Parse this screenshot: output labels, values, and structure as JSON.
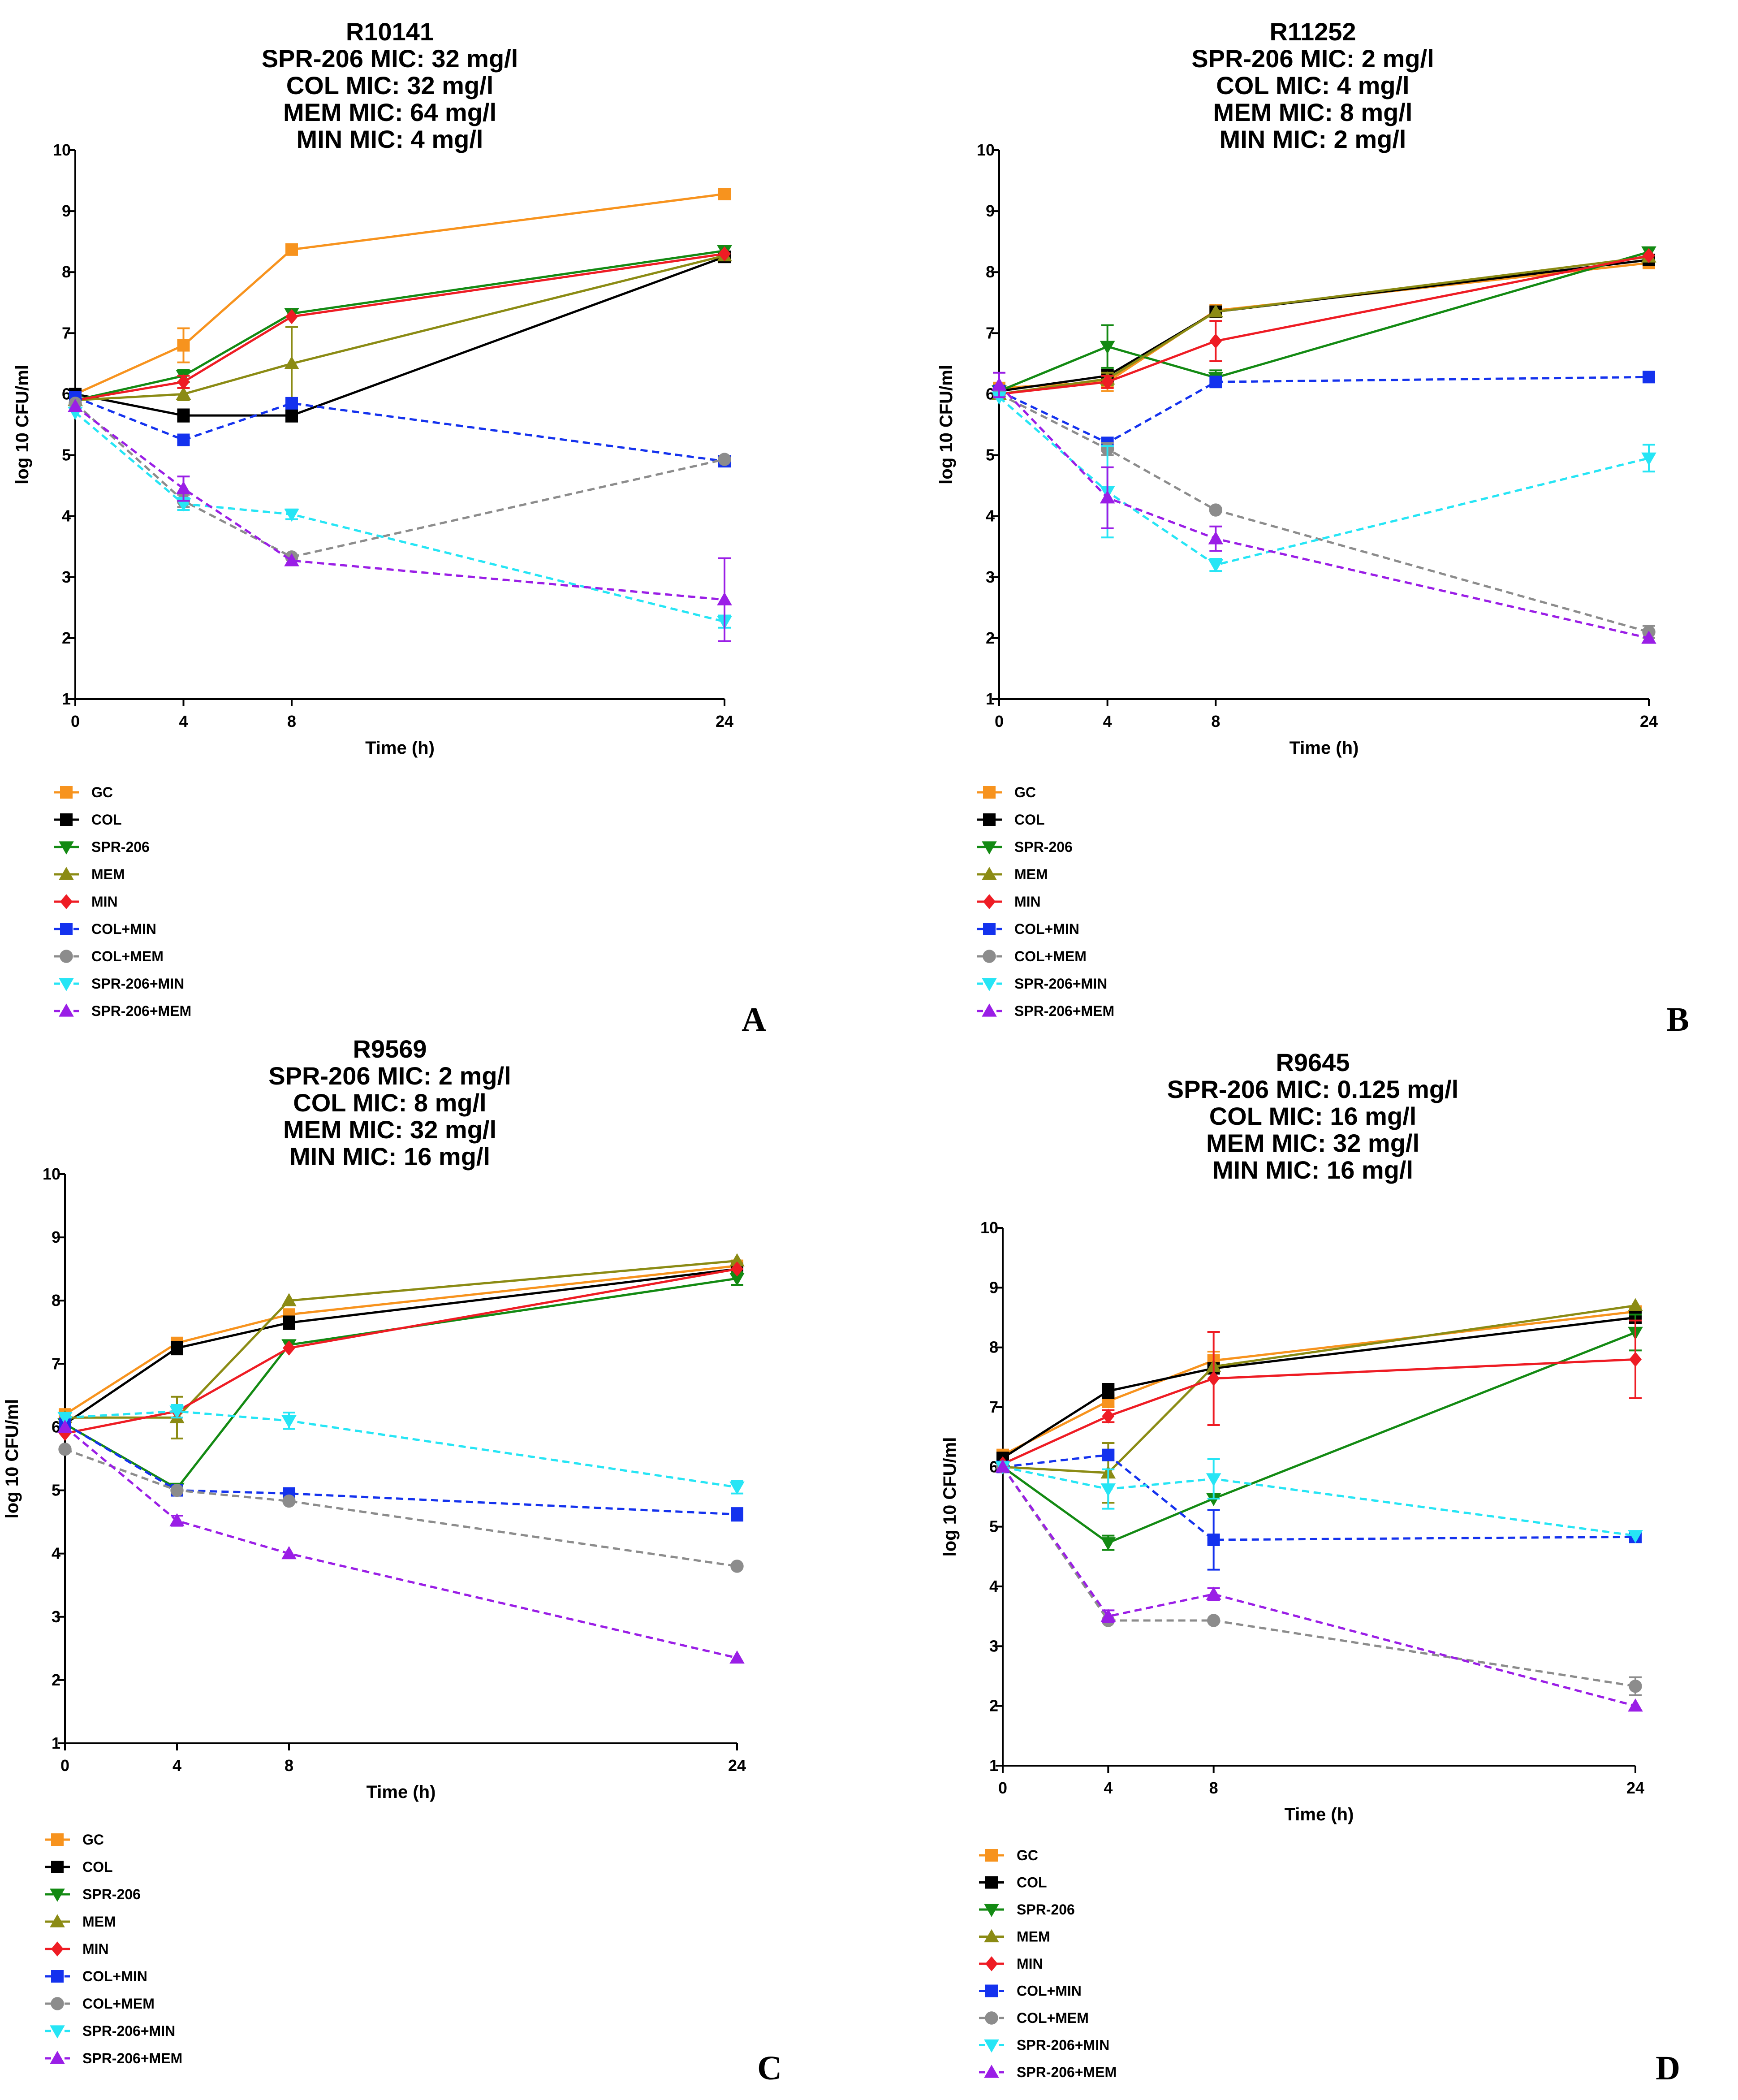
{
  "legend": [
    {
      "key": "GC",
      "label": "GC",
      "color": "#f7931e",
      "marker": "square",
      "dash": false
    },
    {
      "key": "COL",
      "label": "COL",
      "color": "#000000",
      "marker": "square",
      "dash": false
    },
    {
      "key": "SPR",
      "label": "SPR-206",
      "color": "#138a13",
      "marker": "triangle-down",
      "dash": false
    },
    {
      "key": "MEM",
      "label": "MEM",
      "color": "#8b8b14",
      "marker": "triangle-up",
      "dash": false
    },
    {
      "key": "MIN",
      "label": "MIN",
      "color": "#ee1c24",
      "marker": "diamond",
      "dash": false
    },
    {
      "key": "COLMIN",
      "label": "COL+MIN",
      "color": "#1432ee",
      "marker": "square",
      "dash": true
    },
    {
      "key": "COLMEM",
      "label": "COL+MEM",
      "color": "#8c8c8c",
      "marker": "circle",
      "dash": true
    },
    {
      "key": "SPRMIN",
      "label": "SPR-206+MIN",
      "color": "#26e5f5",
      "marker": "triangle-down",
      "dash": true
    },
    {
      "key": "SPRMEM",
      "label": "SPR-206+MEM",
      "color": "#9a1ee6",
      "marker": "triangle-up",
      "dash": true
    }
  ],
  "chart_data": [
    {
      "type": "line",
      "panel_label": "A",
      "title_lines": [
        "R10141",
        "SPR-206 MIC: 32 mg/l",
        "COL MIC: 32 mg/l",
        "MEM MIC: 64 mg/l",
        "MIN MIC: 4 mg/l"
      ],
      "xlabel": "Time (h)",
      "ylabel": "log 10 CFU/ml",
      "x": [
        0,
        4,
        8,
        24
      ],
      "xlim": [
        0,
        24
      ],
      "ylim": [
        1,
        10
      ],
      "yticks": [
        1,
        2,
        3,
        4,
        5,
        6,
        7,
        8,
        9,
        10
      ],
      "xticks": [
        0,
        4,
        8,
        24
      ],
      "series": [
        {
          "name": "GC",
          "values": [
            6.0,
            6.8,
            8.37,
            9.28
          ],
          "err": [
            0.05,
            0.28,
            0.05,
            0.05
          ]
        },
        {
          "name": "COL",
          "values": [
            6.0,
            5.65,
            5.65,
            8.25
          ],
          "err": [
            0.05,
            0.1,
            0.1,
            0.05
          ]
        },
        {
          "name": "SPR-206",
          "values": [
            5.9,
            6.3,
            7.32,
            8.35
          ],
          "err": [
            0.05,
            0.1,
            0.05,
            0.05
          ]
        },
        {
          "name": "MEM",
          "values": [
            5.9,
            6.0,
            6.5,
            8.27
          ],
          "err": [
            0.05,
            0.1,
            0.6,
            0.05
          ]
        },
        {
          "name": "MIN",
          "values": [
            5.9,
            6.2,
            7.27,
            8.3
          ],
          "err": [
            0.05,
            0.1,
            0.05,
            0.05
          ]
        },
        {
          "name": "COL+MIN",
          "values": [
            5.95,
            5.25,
            5.85,
            4.9
          ],
          "err": [
            0.05,
            0.05,
            0.05,
            0.05
          ]
        },
        {
          "name": "COL+MEM",
          "values": [
            5.85,
            4.25,
            3.33,
            4.93
          ],
          "err": [
            0.05,
            0.1,
            0.05,
            0.05
          ]
        },
        {
          "name": "SPR-206+MIN",
          "values": [
            5.7,
            4.2,
            4.03,
            2.27
          ],
          "err": [
            0.05,
            0.1,
            0.08,
            0.1
          ]
        },
        {
          "name": "SPR-206+MEM",
          "values": [
            5.8,
            4.45,
            3.27,
            2.63
          ],
          "err": [
            0.05,
            0.2,
            0.05,
            0.68
          ]
        }
      ]
    },
    {
      "type": "line",
      "panel_label": "B",
      "title_lines": [
        "R11252",
        "SPR-206 MIC: 2 mg/l",
        "COL MIC: 4 mg/l",
        "MEM MIC: 8 mg/l",
        "MIN MIC: 2 mg/l"
      ],
      "xlabel": "Time (h)",
      "ylabel": "log 10 CFU/ml",
      "x": [
        0,
        4,
        8,
        24
      ],
      "xlim": [
        0,
        24
      ],
      "ylim": [
        1,
        10
      ],
      "yticks": [
        1,
        2,
        3,
        4,
        5,
        6,
        7,
        8,
        9,
        10
      ],
      "xticks": [
        0,
        4,
        8,
        24
      ],
      "series": [
        {
          "name": "GC",
          "values": [
            6.1,
            6.2,
            7.37,
            8.15
          ],
          "err": [
            0.05,
            0.15,
            0.05,
            0.05
          ]
        },
        {
          "name": "COL",
          "values": [
            6.05,
            6.3,
            7.35,
            8.2
          ],
          "err": [
            0.05,
            0.1,
            0.05,
            0.05
          ]
        },
        {
          "name": "SPR-206",
          "values": [
            6.05,
            6.78,
            6.27,
            8.33
          ],
          "err": [
            0.05,
            0.35,
            0.12,
            0.05
          ]
        },
        {
          "name": "MEM",
          "values": [
            6.0,
            6.25,
            7.35,
            8.25
          ],
          "err": [
            0.05,
            0.1,
            0.05,
            0.05
          ]
        },
        {
          "name": "MIN",
          "values": [
            6.0,
            6.2,
            6.87,
            8.27
          ],
          "err": [
            0.05,
            0.1,
            0.33,
            0.05
          ]
        },
        {
          "name": "COL+MIN",
          "values": [
            6.05,
            5.2,
            6.2,
            6.28
          ],
          "err": [
            0.05,
            0.05,
            0.05,
            0.05
          ]
        },
        {
          "name": "COL+MEM",
          "values": [
            6.0,
            5.1,
            4.1,
            2.1
          ],
          "err": [
            0.05,
            0.1,
            0.05,
            0.1
          ]
        },
        {
          "name": "SPR-206+MIN",
          "values": [
            5.95,
            4.4,
            3.2,
            4.95
          ],
          "err": [
            0.05,
            0.75,
            0.1,
            0.22
          ]
        },
        {
          "name": "SPR-206+MEM",
          "values": [
            6.15,
            4.3,
            3.63,
            2.0
          ],
          "err": [
            0.2,
            0.5,
            0.2,
            0.05
          ]
        }
      ]
    },
    {
      "type": "line",
      "panel_label": "C",
      "title_lines": [
        "R9569",
        "SPR-206 MIC: 2 mg/l",
        "COL MIC: 8 mg/l",
        "MEM MIC: 32 mg/l",
        "MIN MIC: 16 mg/l"
      ],
      "xlabel": "Time (h)",
      "ylabel": "log 10 CFU/ml",
      "x": [
        0,
        4,
        8,
        24
      ],
      "xlim": [
        0,
        24
      ],
      "ylim": [
        1,
        10
      ],
      "yticks": [
        1,
        2,
        3,
        4,
        5,
        6,
        7,
        8,
        9,
        10
      ],
      "xticks": [
        0,
        4,
        8,
        24
      ],
      "series": [
        {
          "name": "GC",
          "values": [
            6.2,
            7.33,
            7.78,
            8.55
          ],
          "err": [
            0.05,
            0.05,
            0.05,
            0.05
          ]
        },
        {
          "name": "COL",
          "values": [
            6.05,
            7.25,
            7.65,
            8.5
          ],
          "err": [
            0.05,
            0.1,
            0.1,
            0.05
          ]
        },
        {
          "name": "SPR-206",
          "values": [
            6.05,
            5.03,
            7.3,
            8.35
          ],
          "err": [
            0.05,
            0.05,
            0.05,
            0.1
          ]
        },
        {
          "name": "MEM",
          "values": [
            6.15,
            6.15,
            8.0,
            8.63
          ],
          "err": [
            0.05,
            0.33,
            0.05,
            0.05
          ]
        },
        {
          "name": "MIN",
          "values": [
            5.9,
            6.25,
            7.25,
            8.5
          ],
          "err": [
            0.05,
            0.1,
            0.05,
            0.05
          ]
        },
        {
          "name": "COL+MIN",
          "values": [
            6.05,
            5.0,
            4.95,
            4.62
          ],
          "err": [
            0.05,
            0.05,
            0.05,
            0.1
          ]
        },
        {
          "name": "COL+MEM",
          "values": [
            5.65,
            5.0,
            4.83,
            3.8
          ],
          "err": [
            0.05,
            0.05,
            0.05,
            0.05
          ]
        },
        {
          "name": "SPR-206+MIN",
          "values": [
            6.15,
            6.25,
            6.1,
            5.05
          ],
          "err": [
            0.05,
            0.1,
            0.13,
            0.1
          ]
        },
        {
          "name": "SPR-206+MEM",
          "values": [
            6.0,
            4.52,
            4.0,
            2.35
          ],
          "err": [
            0.05,
            0.08,
            0.05,
            0.05
          ]
        }
      ]
    },
    {
      "type": "line",
      "panel_label": "D",
      "title_lines": [
        "R9645",
        "SPR-206 MIC: 0.125 mg/l",
        "COL MIC: 16 mg/l",
        "MEM MIC: 32 mg/l",
        "MIN MIC: 16 mg/l"
      ],
      "xlabel": "Time (h)",
      "ylabel": "log 10 CFU/ml",
      "x": [
        0,
        4,
        8,
        24
      ],
      "xlim": [
        0,
        24
      ],
      "ylim": [
        1,
        10
      ],
      "yticks": [
        1,
        2,
        3,
        4,
        5,
        6,
        7,
        8,
        9,
        10
      ],
      "xticks": [
        0,
        4,
        8,
        24
      ],
      "series": [
        {
          "name": "GC",
          "values": [
            6.2,
            7.1,
            7.78,
            8.6
          ],
          "err": [
            0.05,
            0.1,
            0.15,
            0.05
          ]
        },
        {
          "name": "COL",
          "values": [
            6.15,
            7.27,
            7.65,
            8.5
          ],
          "err": [
            0.05,
            0.12,
            0.05,
            0.05
          ]
        },
        {
          "name": "SPR-206",
          "values": [
            6.0,
            4.73,
            5.47,
            8.25
          ],
          "err": [
            0.05,
            0.12,
            0.05,
            0.3
          ]
        },
        {
          "name": "MEM",
          "values": [
            6.0,
            5.9,
            7.68,
            8.7
          ],
          "err": [
            0.05,
            0.5,
            0.05,
            0.05
          ]
        },
        {
          "name": "MIN",
          "values": [
            6.05,
            6.85,
            7.48,
            7.8
          ],
          "err": [
            0.05,
            0.1,
            0.78,
            0.65
          ]
        },
        {
          "name": "COL+MIN",
          "values": [
            6.0,
            6.2,
            4.78,
            4.83
          ],
          "err": [
            0.05,
            0.05,
            0.5,
            0.05
          ]
        },
        {
          "name": "COL+MEM",
          "values": [
            6.0,
            3.43,
            3.43,
            2.33
          ],
          "err": [
            0.05,
            0.05,
            0.05,
            0.15
          ]
        },
        {
          "name": "SPR-206+MIN",
          "values": [
            6.0,
            5.63,
            5.8,
            4.85
          ],
          "err": [
            0.05,
            0.33,
            0.33,
            0.05
          ]
        },
        {
          "name": "SPR-206+MEM",
          "values": [
            6.0,
            3.5,
            3.87,
            2.0
          ],
          "err": [
            0.05,
            0.1,
            0.1,
            0.05
          ]
        }
      ]
    }
  ]
}
